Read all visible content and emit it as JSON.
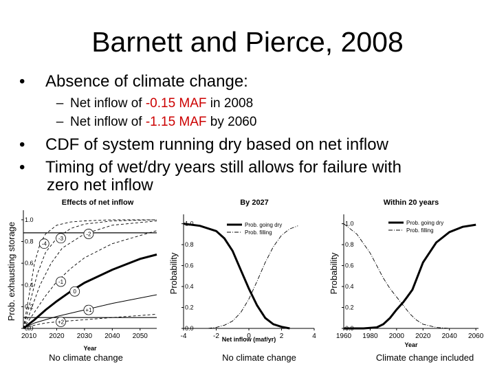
{
  "slide": {
    "title": "Barnett and Pierce, 2008",
    "bullets": [
      {
        "text": "Absence of climate change:"
      },
      {
        "text": "CDF of system running dry based on net inflow"
      },
      {
        "text": "Timing of wet/dry years still allows for failure with",
        "continuation": "zero net inflow"
      }
    ],
    "subbullets": [
      {
        "prefix": "Net inflow of ",
        "value": "-0.15 MAF",
        "suffix": " in 2008"
      },
      {
        "prefix": "Net inflow of ",
        "value": "-1.15 MAF",
        "suffix": " by 2060"
      }
    ],
    "captions": [
      "No climate change",
      "No climate change",
      "Climate change included"
    ]
  },
  "colors": {
    "highlight": "#cc0000",
    "axis": "#000000",
    "grid": "#bbbbbb"
  },
  "chart_data": [
    {
      "type": "line",
      "title": "Effects of net inflow",
      "xlabel": "Year",
      "ylabel": "Prob. exhausting storage",
      "x_ticks": [
        "2010",
        "2020",
        "2030",
        "2040",
        "2050"
      ],
      "y_ticks": [
        "0.0",
        "0.2",
        "0.4",
        "0.6",
        "0.8",
        "1.0"
      ],
      "xlim": [
        2008,
        2056
      ],
      "ylim": [
        0,
        1.05
      ],
      "reference_lines": [
        0.88,
        0.1
      ],
      "series": [
        {
          "name": "-4",
          "style": "dashed",
          "x": [
            2008,
            2010,
            2012,
            2014,
            2016,
            2020,
            2025,
            2030,
            2040,
            2056
          ],
          "y": [
            0,
            0.3,
            0.6,
            0.78,
            0.87,
            0.95,
            0.98,
            0.99,
            1.0,
            1.0
          ]
        },
        {
          "name": "-3",
          "style": "dashed",
          "x": [
            2008,
            2010,
            2013,
            2016,
            2020,
            2025,
            2030,
            2040,
            2056
          ],
          "y": [
            0,
            0.2,
            0.5,
            0.7,
            0.83,
            0.92,
            0.96,
            0.99,
            1.0
          ]
        },
        {
          "name": "-2",
          "style": "dashed",
          "x": [
            2008,
            2010,
            2014,
            2018,
            2022,
            2030,
            2040,
            2056
          ],
          "y": [
            0,
            0.12,
            0.4,
            0.6,
            0.74,
            0.87,
            0.95,
            0.99
          ]
        },
        {
          "name": "-1",
          "style": "dashed",
          "x": [
            2008,
            2012,
            2016,
            2020,
            2025,
            2030,
            2040,
            2056
          ],
          "y": [
            0,
            0.15,
            0.3,
            0.43,
            0.55,
            0.65,
            0.78,
            0.9
          ]
        },
        {
          "name": "0",
          "style": "bold",
          "x": [
            2008,
            2012,
            2016,
            2020,
            2025,
            2030,
            2035,
            2040,
            2050,
            2056
          ],
          "y": [
            0,
            0.08,
            0.17,
            0.25,
            0.34,
            0.42,
            0.48,
            0.54,
            0.64,
            0.68
          ]
        },
        {
          "name": "+1",
          "style": "solid",
          "x": [
            2008,
            2012,
            2016,
            2020,
            2025,
            2030,
            2040,
            2056
          ],
          "y": [
            0,
            0.05,
            0.08,
            0.11,
            0.14,
            0.17,
            0.23,
            0.31
          ]
        },
        {
          "name": "+2",
          "style": "dashed",
          "x": [
            2008,
            2012,
            2016,
            2020,
            2025,
            2030,
            2040,
            2056
          ],
          "y": [
            0,
            0.03,
            0.05,
            0.06,
            0.07,
            0.08,
            0.1,
            0.13
          ]
        }
      ]
    },
    {
      "type": "line",
      "title": "By 2027",
      "xlabel": "Net inflow (maf/yr)",
      "ylabel": "Probability",
      "x_ticks": [
        "-4",
        "-2",
        "0",
        "2",
        "4"
      ],
      "y_ticks": [
        "0.0",
        "0.2",
        "0.4",
        "0.6",
        "0.8",
        "1.0"
      ],
      "xlim": [
        -4,
        4
      ],
      "ylim": [
        0,
        1.05
      ],
      "legend_position": "top-right",
      "series": [
        {
          "name": "Prob. going dry",
          "style": "bold",
          "x": [
            -4,
            -3,
            -2,
            -1.5,
            -1,
            -0.5,
            0,
            0.5,
            1,
            1.5,
            2,
            2.5
          ],
          "y": [
            1.0,
            0.98,
            0.93,
            0.86,
            0.74,
            0.56,
            0.38,
            0.22,
            0.1,
            0.04,
            0.015,
            0.0
          ]
        },
        {
          "name": "Prob. filling",
          "style": "dashdot",
          "x": [
            -2.5,
            -2,
            -1.5,
            -1,
            -0.5,
            0,
            0.5,
            1,
            1.5,
            2,
            2.5,
            3
          ],
          "y": [
            0.0,
            0.01,
            0.03,
            0.07,
            0.15,
            0.28,
            0.45,
            0.63,
            0.78,
            0.89,
            0.95,
            0.98
          ]
        }
      ]
    },
    {
      "type": "line",
      "title": "Within 20 years",
      "xlabel": "Year",
      "ylabel": "Probability",
      "x_ticks": [
        "1960",
        "1980",
        "2000",
        "2020",
        "2040",
        "2060"
      ],
      "y_ticks": [
        "0.0",
        "0.2",
        "0.4",
        "0.6",
        "0.8",
        "1.0"
      ],
      "xlim": [
        1960,
        2062
      ],
      "ylim": [
        0,
        1.05
      ],
      "legend_position": "top-right",
      "series": [
        {
          "name": "Prob. going dry",
          "style": "bold",
          "x": [
            1960,
            1975,
            1985,
            1990,
            1995,
            2000,
            2005,
            2008,
            2012,
            2016,
            2020,
            2030,
            2040,
            2050,
            2060
          ],
          "y": [
            0.0,
            0.0,
            0.01,
            0.04,
            0.1,
            0.18,
            0.25,
            0.3,
            0.37,
            0.5,
            0.63,
            0.82,
            0.92,
            0.97,
            0.99
          ]
        },
        {
          "name": "Prob. filling",
          "style": "dashdot",
          "x": [
            1960,
            1970,
            1980,
            1985,
            1990,
            1995,
            2000,
            2005,
            2010,
            2015,
            2020,
            2030,
            2040,
            2060
          ],
          "y": [
            1.0,
            0.9,
            0.72,
            0.6,
            0.48,
            0.38,
            0.3,
            0.22,
            0.14,
            0.08,
            0.04,
            0.01,
            0.0,
            0.0
          ]
        }
      ]
    }
  ]
}
